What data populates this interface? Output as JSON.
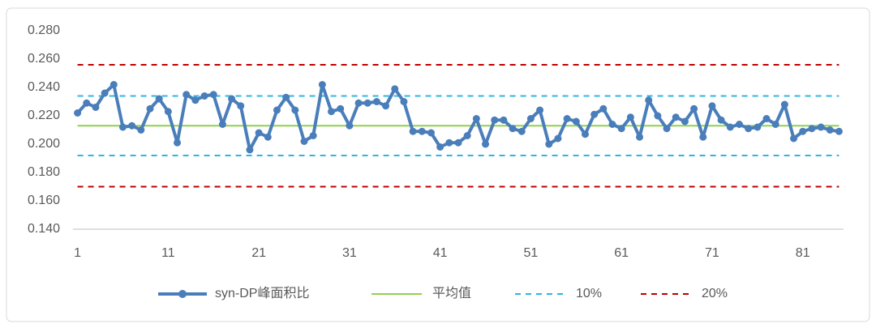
{
  "chart_data": {
    "type": "line",
    "categories": [
      "1",
      null,
      null,
      null,
      null,
      null,
      null,
      null,
      null,
      null,
      "11",
      null,
      null,
      null,
      null,
      null,
      null,
      null,
      null,
      null,
      "21",
      null,
      null,
      null,
      null,
      null,
      null,
      null,
      null,
      null,
      "31",
      null,
      null,
      null,
      null,
      null,
      null,
      null,
      null,
      null,
      "41",
      null,
      null,
      null,
      null,
      null,
      null,
      null,
      null,
      null,
      "51",
      null,
      null,
      null,
      null,
      null,
      null,
      null,
      null,
      null,
      "61",
      null,
      null,
      null,
      null,
      null,
      null,
      null,
      null,
      null,
      "71",
      null,
      null,
      null,
      null,
      null,
      null,
      null,
      null,
      null,
      "81",
      null,
      null,
      null,
      null
    ],
    "series": [
      {
        "name": "syn-DP峰面积比",
        "color": "#4a7ebb",
        "values": [
          0.222,
          0.229,
          0.226,
          0.236,
          0.242,
          0.212,
          0.213,
          0.21,
          0.225,
          0.232,
          0.223,
          0.201,
          0.235,
          0.231,
          0.234,
          0.235,
          0.214,
          0.232,
          0.227,
          0.196,
          0.208,
          0.205,
          0.224,
          0.233,
          0.224,
          0.202,
          0.206,
          0.242,
          0.223,
          0.225,
          0.213,
          0.229,
          0.229,
          0.23,
          0.227,
          0.239,
          0.23,
          0.209,
          0.209,
          0.208,
          0.198,
          0.201,
          0.201,
          0.206,
          0.218,
          0.2,
          0.217,
          0.217,
          0.211,
          0.209,
          0.218,
          0.224,
          0.2,
          0.204,
          0.218,
          0.216,
          0.207,
          0.221,
          0.225,
          0.214,
          0.211,
          0.219,
          0.205,
          0.231,
          0.22,
          0.211,
          0.219,
          0.216,
          0.225,
          0.205,
          0.227,
          0.217,
          0.212,
          0.214,
          0.211,
          0.212,
          0.218,
          0.214,
          0.228,
          0.204,
          0.209,
          0.211,
          0.212,
          0.21,
          0.209
        ]
      }
    ],
    "reference_lines": [
      {
        "name": "平均值",
        "color": "#92d050",
        "dashed": false,
        "values": [
          0.213
        ]
      },
      {
        "name": "10%",
        "color": "#2fb5e0",
        "dashed": true,
        "values": [
          0.234,
          0.192
        ]
      },
      {
        "name": "20%",
        "color": "#c00000",
        "dashed": true,
        "values": [
          0.256,
          0.17
        ]
      }
    ],
    "ylim": [
      0.14,
      0.28
    ],
    "yticks": [
      {
        "value": 0.14,
        "label": "0.140"
      },
      {
        "value": 0.16,
        "label": "0.160"
      },
      {
        "value": 0.18,
        "label": "0.180"
      },
      {
        "value": 0.2,
        "label": "0.200"
      },
      {
        "value": 0.22,
        "label": "0.220"
      },
      {
        "value": 0.24,
        "label": "0.240"
      },
      {
        "value": 0.26,
        "label": "0.260"
      },
      {
        "value": 0.28,
        "label": "0.280"
      }
    ],
    "grid": false,
    "legend": "bottom"
  }
}
